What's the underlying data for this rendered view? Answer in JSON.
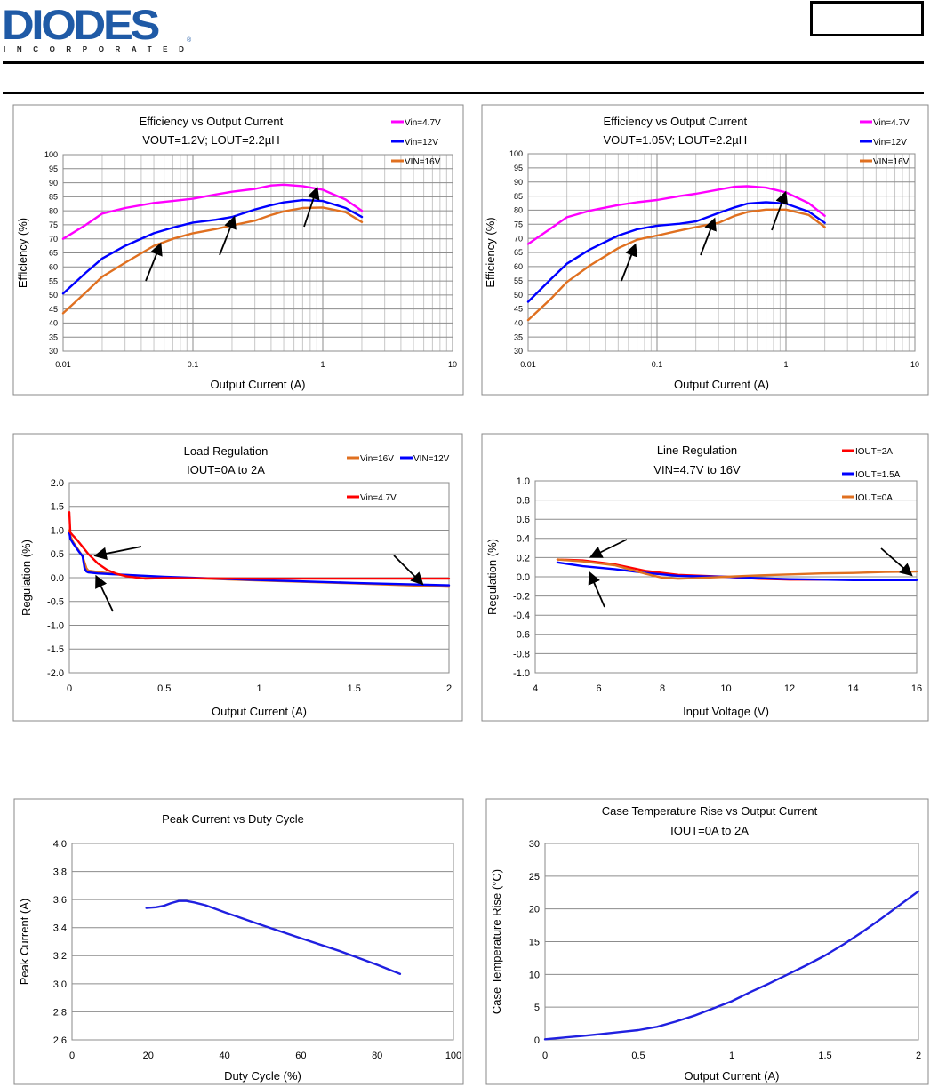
{
  "header": {
    "logo_text": "DIODES",
    "logo_subtext": "INCORPORATED",
    "logo_registered": "®",
    "brand_color": "#1f5aa6"
  },
  "chart_data": [
    {
      "id": "eff1",
      "type": "line",
      "title": "Efficiency vs Output Current",
      "subtitle": "VOUT=1.2V; LOUT=2.2µH",
      "xlabel": "Output Current (A)",
      "ylabel": "Efficiency (%)",
      "xscale": "log",
      "xlim": [
        0.01,
        10
      ],
      "ylim": [
        30,
        100
      ],
      "xticks": [
        0.01,
        0.1,
        1,
        10
      ],
      "xtick_labels": [
        "0.01",
        "0.1",
        "1",
        "10"
      ],
      "yticks": [
        30,
        35,
        40,
        45,
        50,
        55,
        60,
        65,
        70,
        75,
        80,
        85,
        90,
        95,
        100
      ],
      "grid": true,
      "legend": "top-right",
      "series": [
        {
          "name": "Vin=4.7V",
          "color": "#ff00ff",
          "x": [
            0.01,
            0.015,
            0.02,
            0.03,
            0.05,
            0.07,
            0.1,
            0.15,
            0.2,
            0.3,
            0.4,
            0.5,
            0.7,
            1,
            1.5,
            2
          ],
          "y": [
            70,
            75,
            79,
            81,
            82.8,
            83.5,
            84.3,
            85.8,
            86.8,
            87.8,
            89,
            89.3,
            88.8,
            87.5,
            84,
            80
          ]
        },
        {
          "name": "Vin=12V",
          "color": "#0000ff",
          "x": [
            0.01,
            0.015,
            0.02,
            0.03,
            0.05,
            0.07,
            0.1,
            0.15,
            0.2,
            0.3,
            0.4,
            0.5,
            0.7,
            1,
            1.5,
            2
          ],
          "y": [
            50.5,
            58,
            63,
            67.5,
            72,
            74,
            75.8,
            76.8,
            77.8,
            80.5,
            82,
            83,
            83.8,
            83.5,
            81,
            77.8
          ]
        },
        {
          "name": "VIN=16V",
          "color": "#e07020",
          "x": [
            0.01,
            0.015,
            0.02,
            0.03,
            0.05,
            0.07,
            0.1,
            0.15,
            0.2,
            0.3,
            0.4,
            0.5,
            0.7,
            1,
            1.5,
            2
          ],
          "y": [
            43.5,
            51,
            56.5,
            61.5,
            67.5,
            70,
            72,
            73.5,
            74.8,
            76.5,
            78.5,
            79.8,
            81,
            81.2,
            79.5,
            76
          ]
        }
      ]
    },
    {
      "id": "eff2",
      "type": "line",
      "title": "Efficiency vs Output Current",
      "subtitle": "VOUT=1.05V; LOUT=2.2µH",
      "xlabel": "Output Current (A)",
      "ylabel": "Efficiency (%)",
      "xscale": "log",
      "xlim": [
        0.01,
        10
      ],
      "ylim": [
        30,
        100
      ],
      "xticks": [
        0.01,
        0.1,
        1,
        10
      ],
      "xtick_labels": [
        "0.01",
        "0.1",
        "1",
        "10"
      ],
      "yticks": [
        30,
        35,
        40,
        45,
        50,
        55,
        60,
        65,
        70,
        75,
        80,
        85,
        90,
        95,
        100
      ],
      "grid": true,
      "legend": "top-right",
      "series": [
        {
          "name": "Vin=4.7V",
          "color": "#ff00ff",
          "x": [
            0.01,
            0.015,
            0.02,
            0.03,
            0.05,
            0.07,
            0.1,
            0.15,
            0.2,
            0.3,
            0.4,
            0.5,
            0.7,
            1,
            1.5,
            2
          ],
          "y": [
            68,
            73.5,
            77.5,
            79.8,
            81.8,
            82.8,
            83.6,
            85,
            85.8,
            87.3,
            88.3,
            88.5,
            88,
            86.3,
            82.5,
            78
          ]
        },
        {
          "name": "Vin=12V",
          "color": "#0000ff",
          "x": [
            0.01,
            0.015,
            0.02,
            0.03,
            0.05,
            0.07,
            0.1,
            0.15,
            0.2,
            0.3,
            0.4,
            0.5,
            0.7,
            1,
            1.5,
            2
          ],
          "y": [
            47.5,
            55.5,
            61,
            66,
            71,
            73.2,
            74.5,
            75.2,
            76,
            79,
            81,
            82.3,
            82.8,
            82.3,
            79.5,
            75.5
          ]
        },
        {
          "name": "VIN=16V",
          "color": "#e07020",
          "x": [
            0.01,
            0.015,
            0.02,
            0.03,
            0.05,
            0.07,
            0.1,
            0.15,
            0.2,
            0.3,
            0.4,
            0.5,
            0.7,
            1,
            1.5,
            2
          ],
          "y": [
            41,
            48.5,
            54.5,
            60.3,
            66.5,
            69.5,
            71,
            72.8,
            74,
            75.5,
            78,
            79.3,
            80.2,
            80.2,
            78.3,
            74
          ]
        }
      ]
    },
    {
      "id": "loadreg",
      "type": "line",
      "title": "Load Regulation",
      "subtitle": "IOUT=0A to 2A",
      "xlabel": "Output Current (A)",
      "ylabel": "Regulation (%)",
      "xlim": [
        0,
        2
      ],
      "ylim": [
        -2.0,
        2.0
      ],
      "xticks": [
        0,
        0.5,
        1,
        1.5,
        2
      ],
      "xtick_labels": [
        "0",
        "0.5",
        "1",
        "1.5",
        "2"
      ],
      "yticks": [
        -2.0,
        -1.5,
        -1.0,
        -0.5,
        0.0,
        0.5,
        1.0,
        1.5,
        2.0
      ],
      "ytick_labels": [
        "-2.0",
        "-1.5",
        "-1.0",
        "-0.5",
        "0.0",
        "0.5",
        "1.0",
        "1.5",
        "2.0"
      ],
      "grid": true,
      "legend": "top-right",
      "series": [
        {
          "name": "Vin=16V",
          "color": "#e07020",
          "x": [
            0,
            0.005,
            0.02,
            0.05,
            0.07,
            0.09,
            0.1,
            0.15,
            0.25,
            0.5,
            1,
            1.5,
            2
          ],
          "y": [
            1.0,
            0.88,
            0.75,
            0.57,
            0.45,
            0.2,
            0.15,
            0.12,
            0.07,
            0.01,
            -0.06,
            -0.12,
            -0.19
          ]
        },
        {
          "name": "VIN=12V",
          "color": "#0000ff",
          "x": [
            0,
            0.005,
            0.02,
            0.05,
            0.07,
            0.08,
            0.09,
            0.1,
            0.15,
            0.25,
            0.5,
            1,
            1.5,
            2
          ],
          "y": [
            0.95,
            0.82,
            0.72,
            0.55,
            0.45,
            0.2,
            0.13,
            0.11,
            0.09,
            0.07,
            0.02,
            -0.05,
            -0.11,
            -0.16
          ]
        },
        {
          "name": "Vin=4.7V",
          "color": "#ff0000",
          "x": [
            0,
            0.005,
            0.02,
            0.04,
            0.1,
            0.15,
            0.2,
            0.25,
            0.3,
            0.4,
            0.5,
            1,
            1.5,
            2
          ],
          "y": [
            1.38,
            0.95,
            0.88,
            0.8,
            0.5,
            0.3,
            0.16,
            0.08,
            0.03,
            -0.02,
            -0.01,
            -0.02,
            -0.02,
            -0.02
          ]
        }
      ]
    },
    {
      "id": "linereg",
      "type": "line",
      "title": "Line Regulation",
      "subtitle": "VIN=4.7V to 16V",
      "xlabel": "Input Voltage (V)",
      "ylabel": "Regulation (%)",
      "xlim": [
        4,
        16
      ],
      "ylim": [
        -1.0,
        1.0
      ],
      "xticks": [
        4,
        6,
        8,
        10,
        12,
        14,
        16
      ],
      "xtick_labels": [
        "4",
        "6",
        "8",
        "10",
        "12",
        "14",
        "16"
      ],
      "yticks": [
        -1.0,
        -0.8,
        -0.6,
        -0.4,
        -0.2,
        0.0,
        0.2,
        0.4,
        0.6,
        0.8,
        1.0
      ],
      "ytick_labels": [
        "-1.0",
        "-0.8",
        "-0.6",
        "-0.4",
        "-0.2",
        "0.0",
        "0.2",
        "0.4",
        "0.6",
        "0.8",
        "1.0"
      ],
      "grid": true,
      "legend": "top-right",
      "series": [
        {
          "name": "IOUT=2A",
          "color": "#ff0000",
          "x": [
            4.7,
            5.5,
            6.5,
            7.5,
            8.5,
            10,
            11,
            12,
            13,
            14,
            15,
            16
          ],
          "y": [
            0.18,
            0.17,
            0.13,
            0.06,
            0.02,
            0.0,
            -0.02,
            -0.03,
            -0.03,
            -0.03,
            -0.03,
            -0.03
          ]
        },
        {
          "name": "IOUT=1.5A",
          "color": "#0000ff",
          "x": [
            4.7,
            5.5,
            6.5,
            7.5,
            8.5,
            10,
            11,
            12,
            13,
            14,
            15,
            16
          ],
          "y": [
            0.15,
            0.11,
            0.08,
            0.04,
            0.01,
            0.0,
            -0.015,
            -0.025,
            -0.03,
            -0.035,
            -0.035,
            -0.035
          ]
        },
        {
          "name": "IOUT=0A",
          "color": "#e07020",
          "x": [
            4.7,
            5.5,
            6.5,
            7.5,
            8,
            8.5,
            9,
            10,
            11,
            12,
            13,
            14,
            15,
            16
          ],
          "y": [
            0.18,
            0.16,
            0.12,
            0.03,
            -0.01,
            -0.02,
            -0.015,
            0.0,
            0.015,
            0.025,
            0.035,
            0.04,
            0.05,
            0.055
          ]
        }
      ]
    },
    {
      "id": "peak",
      "type": "line",
      "title": "Peak Current vs Duty Cycle",
      "subtitle": "",
      "xlabel": "Duty Cycle (%)",
      "ylabel": "Peak Current (A)",
      "xlim": [
        0,
        100
      ],
      "ylim": [
        2.6,
        4.0
      ],
      "xticks": [
        0,
        20,
        40,
        60,
        80,
        100
      ],
      "xtick_labels": [
        "0",
        "20",
        "40",
        "60",
        "80",
        "100"
      ],
      "yticks": [
        2.6,
        2.8,
        3.0,
        3.2,
        3.4,
        3.6,
        3.8,
        4.0
      ],
      "ytick_labels": [
        "2.6",
        "2.8",
        "3.0",
        "3.2",
        "3.4",
        "3.6",
        "3.8",
        "4.0"
      ],
      "grid": true,
      "legend": "none",
      "series": [
        {
          "name": "Peak Current",
          "color": "#2020e0",
          "x": [
            19.5,
            22,
            24,
            26,
            28,
            30,
            32,
            35,
            40,
            50,
            60,
            70,
            80,
            86
          ],
          "y": [
            3.54,
            3.545,
            3.555,
            3.575,
            3.59,
            3.59,
            3.58,
            3.56,
            3.51,
            3.415,
            3.325,
            3.235,
            3.135,
            3.07
          ]
        }
      ]
    },
    {
      "id": "temp",
      "type": "line",
      "title": "Case Temperature Rise vs Output Current",
      "subtitle": "IOUT=0A to 2A",
      "xlabel": "Output Current (A)",
      "ylabel": "Case Temperature Rise (°C)",
      "xlim": [
        0,
        2
      ],
      "ylim": [
        0,
        30
      ],
      "xticks": [
        0,
        0.5,
        1,
        1.5,
        2
      ],
      "xtick_labels": [
        "0",
        "0.5",
        "1",
        "1.5",
        "2"
      ],
      "yticks": [
        0,
        5,
        10,
        15,
        20,
        25,
        30
      ],
      "ytick_labels": [
        "0",
        "5",
        "10",
        "15",
        "20",
        "25",
        "30"
      ],
      "grid": true,
      "legend": "none",
      "series": [
        {
          "name": "Case Temperature Rise",
          "color": "#2020e0",
          "x": [
            0,
            0.1,
            0.2,
            0.3,
            0.4,
            0.5,
            0.6,
            0.7,
            0.8,
            0.9,
            1.0,
            1.1,
            1.2,
            1.3,
            1.4,
            1.5,
            1.6,
            1.7,
            1.8,
            1.9,
            2.0
          ],
          "y": [
            0.1,
            0.35,
            0.6,
            0.9,
            1.2,
            1.5,
            2.0,
            2.8,
            3.7,
            4.8,
            5.9,
            7.3,
            8.6,
            10.0,
            11.4,
            12.9,
            14.6,
            16.5,
            18.5,
            20.6,
            22.7
          ]
        }
      ]
    }
  ]
}
